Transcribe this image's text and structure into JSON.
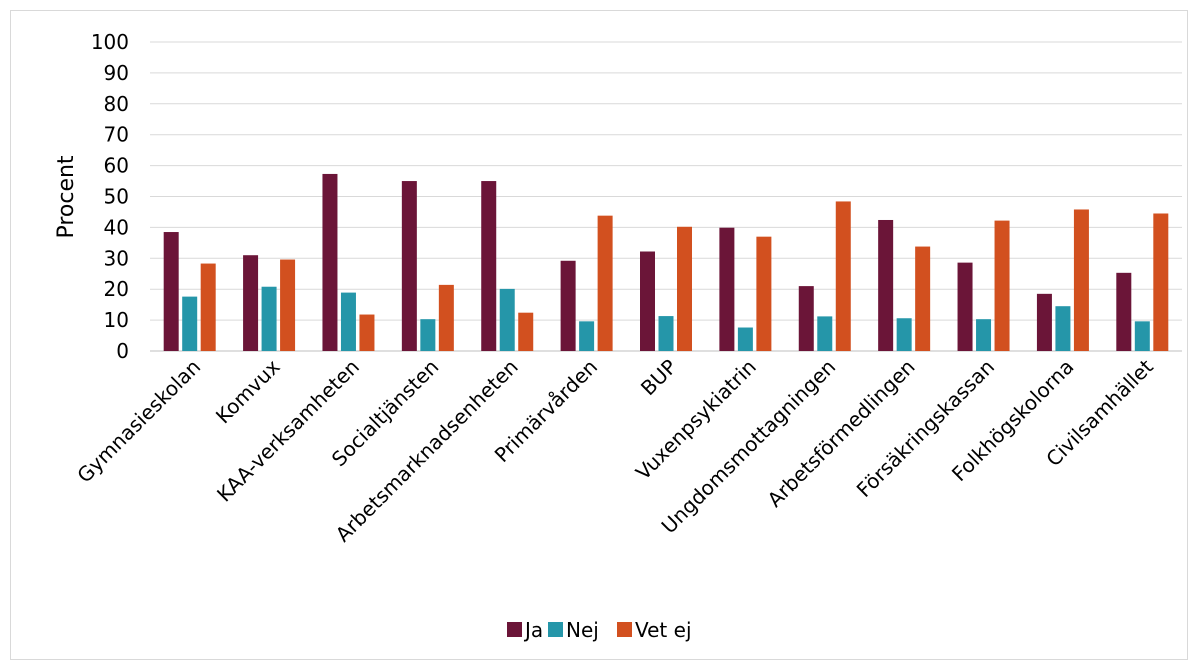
{
  "chart_data": {
    "type": "bar",
    "title": "",
    "xlabel": "",
    "ylabel": "Procent",
    "ylim": [
      0,
      100
    ],
    "yticks": [
      0,
      10,
      20,
      30,
      40,
      50,
      60,
      70,
      80,
      90,
      100
    ],
    "grid": true,
    "legend_position": "bottom",
    "categories": [
      "Gymnasieskolan",
      "Komvux",
      "KAA-verksamheten",
      "Socialtjänsten",
      "Arbetsmarknadsenheten",
      "Primärvården",
      "BUP",
      "Vuxenpsykiatrin",
      "Ungdomsmottagningen",
      "Arbetsförmedlingen",
      "Försäkringskassan",
      "Folkhögskolorna",
      "Civilsamhället"
    ],
    "series": [
      {
        "name": "Ja",
        "color": "#6b1538",
        "values": [
          38.5,
          31,
          57.3,
          55,
          55,
          29.2,
          32.2,
          39.9,
          21,
          42.4,
          28.6,
          18.5,
          25.3
        ]
      },
      {
        "name": "Nej",
        "color": "#2596a9",
        "values": [
          17.6,
          20.8,
          18.9,
          10.3,
          20.1,
          9.6,
          11.3,
          7.6,
          11.2,
          10.6,
          10.3,
          14.5,
          9.6
        ]
      },
      {
        "name": "Vet ej",
        "color": "#d2501f",
        "values": [
          28.3,
          29.6,
          11.8,
          21.4,
          12.4,
          43.8,
          40.2,
          37,
          48.4,
          33.8,
          42.2,
          45.8,
          44.5
        ]
      }
    ]
  }
}
